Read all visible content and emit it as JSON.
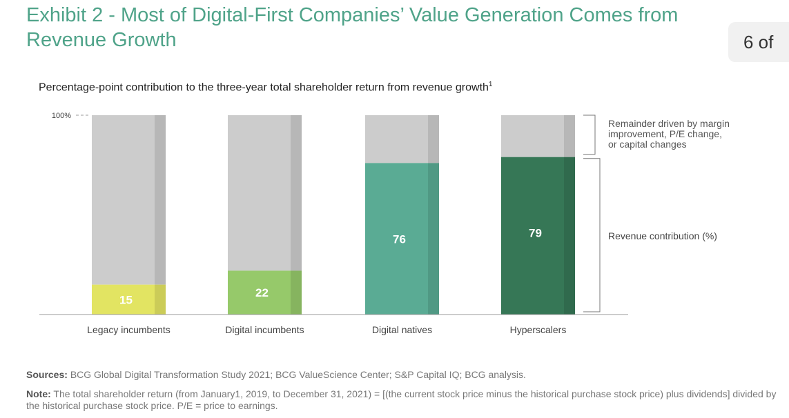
{
  "header": {
    "title": "Exhibit 2 - Most of Digital-First Companies’ Value Generation Comes from Revenue Growth",
    "page_indicator": "6 of"
  },
  "chart_data": {
    "type": "bar",
    "stacked": true,
    "title": "Percentage-point contribution to the three-year total shareholder return from revenue growth",
    "title_footnote": "1",
    "categories": [
      "Legacy incumbents",
      "Digital incumbents",
      "Digital natives",
      "Hyperscalers"
    ],
    "series": [
      {
        "name": "Revenue contribution (%)",
        "values": [
          15,
          22,
          76,
          79
        ],
        "colors": [
          "#e2e462",
          "#96c96a",
          "#5aab94",
          "#367756"
        ]
      },
      {
        "name": "Remainder driven by margin improvement, P/E change, or capital changes",
        "values": [
          85,
          78,
          24,
          21
        ],
        "color": "#cccccc"
      }
    ],
    "data_labels": [
      "15",
      "22",
      "76",
      "79"
    ],
    "ylim": [
      0,
      100
    ],
    "y_tick_label": "100%",
    "legend_placement": "right",
    "legend": {
      "remainder_lines": [
        "Remainder driven by margin",
        "improvement, P/E change,",
        "or capital changes"
      ],
      "revenue": "Revenue contribution (%)"
    },
    "grid": false
  },
  "footer": {
    "sources_label": "Sources:",
    "sources_text": "BCG Global Digital Transformation Study 2021; BCG ValueScience Center; S&P Capital IQ; BCG analysis.",
    "note_label": "Note:",
    "note_text": "The total shareholder return (from January1, 2019, to December 31, 2021) = [(the current stock price minus the historical purchase stock price) plus dividends] divided by the historical purchase stock price. P/E = price to earnings."
  }
}
